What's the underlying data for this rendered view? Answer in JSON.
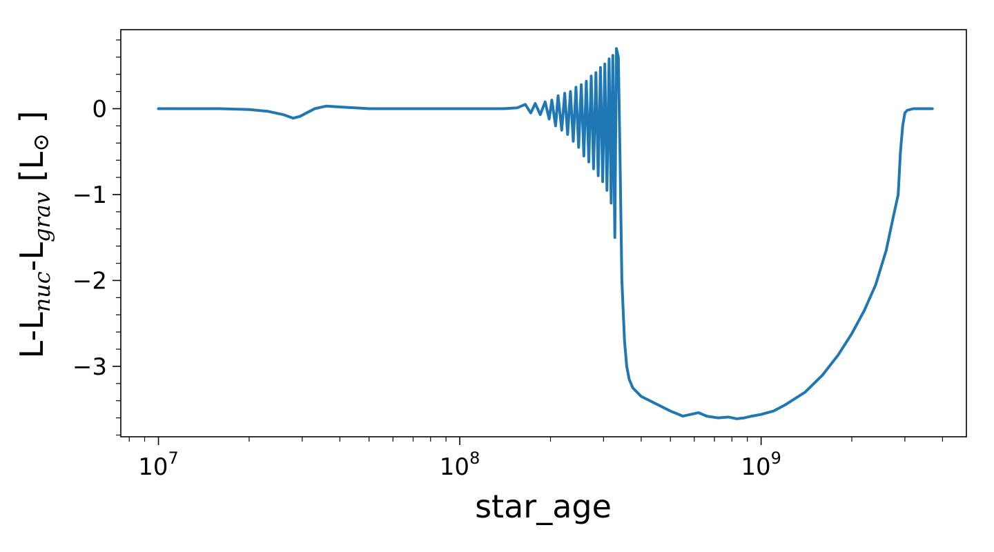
{
  "chart_data": {
    "type": "line",
    "xscale": "log",
    "xlim": [
      7500000.0,
      4800000000.0
    ],
    "ylim": [
      -3.82,
      0.92
    ],
    "xlabel": "star_age",
    "ylabel": {
      "prefix": "L-L",
      "sub1": "nuc",
      "mid": "-L",
      "sub2": "grav",
      "suffix": " [L",
      "symbol": "⊙",
      "close": " ]"
    },
    "x_ticks": [
      {
        "value": 10000000.0,
        "base": "10",
        "exp": "7"
      },
      {
        "value": 100000000.0,
        "base": "10",
        "exp": "8"
      },
      {
        "value": 1000000000.0,
        "base": "10",
        "exp": "9"
      }
    ],
    "y_ticks": [
      {
        "value": 0,
        "label": "0"
      },
      {
        "value": -1,
        "label": "−1"
      },
      {
        "value": -2,
        "label": "−2"
      },
      {
        "value": -3,
        "label": "−3"
      }
    ],
    "grid": false,
    "line_color": "#1f77b4",
    "series": [
      {
        "x": [
          10000000.0,
          13000000.0,
          16000000.0,
          20000000.0,
          23000000.0,
          26000000.0,
          28000000.0,
          29500000.0,
          31000000.0,
          33000000.0,
          36000000.0,
          40000000.0,
          50000000.0,
          60000000.0,
          80000000.0,
          100000000.0,
          120000000.0,
          140000000.0,
          155000000.0,
          165000000.0,
          172000000.0,
          178000000.0,
          185000000.0,
          192000000.0,
          198000000.0,
          202000000.0,
          208000000.0,
          212000000.0,
          218000000.0,
          223000000.0,
          228000000.0,
          233000000.0,
          238000000.0,
          243000000.0,
          248000000.0,
          253000000.0,
          258000000.0,
          263000000.0,
          268000000.0,
          273000000.0,
          278000000.0,
          283000000.0,
          288000000.0,
          293000000.0,
          298000000.0,
          303000000.0,
          308000000.0,
          313000000.0,
          318000000.0,
          322000000.0,
          327000000.0,
          331000000.0,
          336000000.0,
          340000000.0,
          345000000.0,
          352000000.0,
          358000000.0,
          365000000.0,
          375000000.0,
          400000000.0,
          450000000.0,
          500000000.0,
          550000000.0,
          620000000.0,
          660000000.0,
          720000000.0,
          780000000.0,
          830000000.0,
          880000000.0,
          930000000.0,
          1000000000.0,
          1100000000.0,
          1200000000.0,
          1400000000.0,
          1600000000.0,
          1800000000.0,
          2000000000.0,
          2200000000.0,
          2400000000.0,
          2600000000.0,
          2750000000.0,
          2850000000.0,
          2900000000.0,
          2950000000.0,
          3000000000.0,
          3050000000.0,
          3200000000.0,
          3500000000.0,
          3700000000.0
        ],
        "y": [
          0.0,
          0.0,
          0.0,
          -0.01,
          -0.03,
          -0.07,
          -0.11,
          -0.09,
          -0.05,
          0.0,
          0.03,
          0.02,
          0.0,
          0.0,
          0.0,
          0.0,
          0.0,
          0.0,
          0.01,
          0.05,
          -0.05,
          0.06,
          -0.07,
          0.08,
          -0.12,
          0.1,
          -0.2,
          0.15,
          -0.25,
          0.18,
          -0.3,
          0.2,
          -0.38,
          0.25,
          -0.45,
          0.28,
          -0.55,
          0.32,
          -0.62,
          0.38,
          -0.7,
          0.42,
          -0.78,
          0.48,
          -0.85,
          0.52,
          -0.95,
          0.58,
          -1.1,
          0.62,
          -1.5,
          0.7,
          0.6,
          -0.5,
          -2.0,
          -2.7,
          -3.0,
          -3.15,
          -3.25,
          -3.35,
          -3.44,
          -3.52,
          -3.58,
          -3.54,
          -3.58,
          -3.6,
          -3.59,
          -3.61,
          -3.6,
          -3.58,
          -3.56,
          -3.52,
          -3.45,
          -3.3,
          -3.1,
          -2.87,
          -2.62,
          -2.35,
          -2.05,
          -1.65,
          -1.25,
          -1.0,
          -0.5,
          -0.2,
          -0.05,
          -0.02,
          0.0,
          0.0,
          0.0
        ]
      }
    ]
  }
}
